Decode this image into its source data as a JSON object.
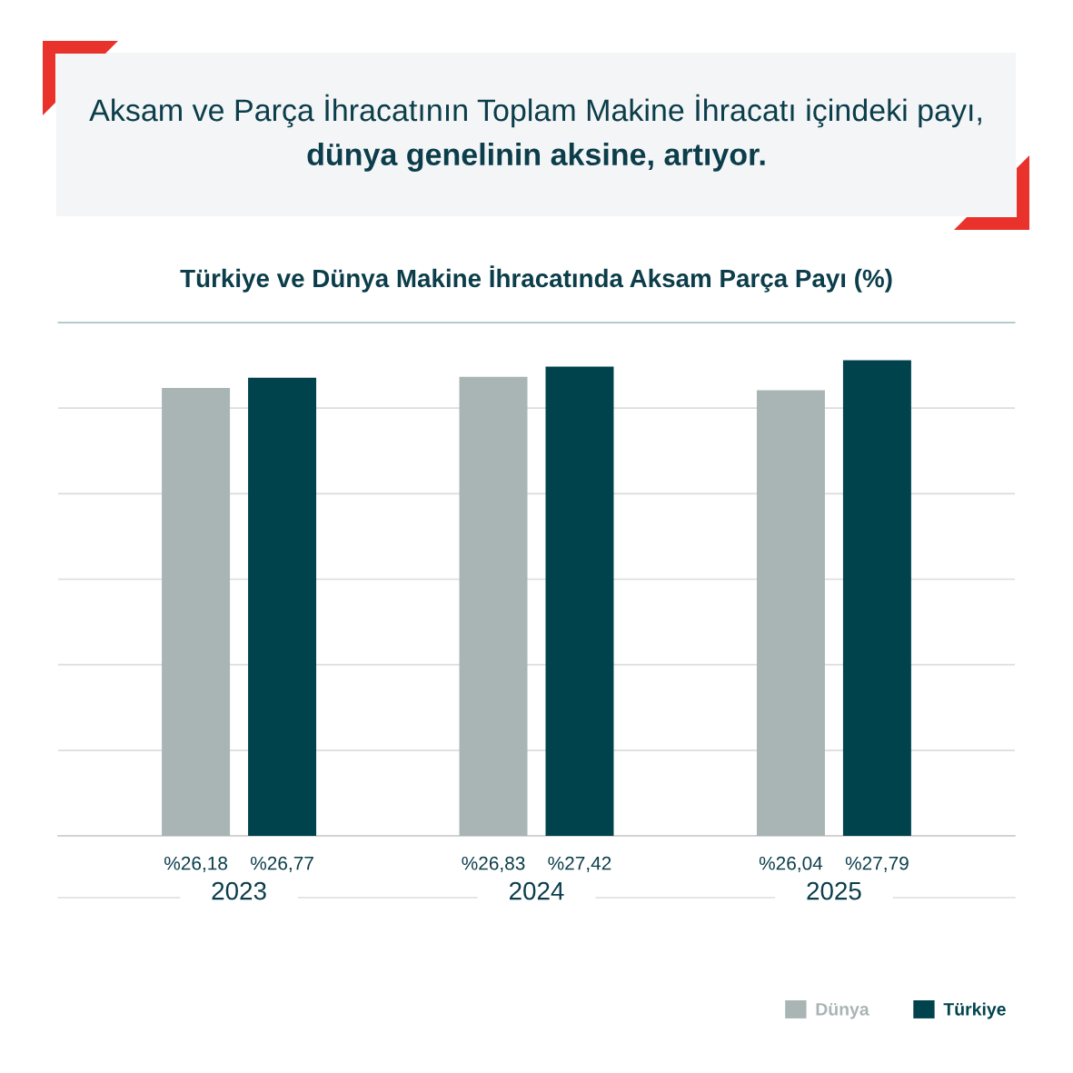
{
  "chart_data": {
    "type": "bar",
    "title": "Aksam ve Parça İhracatının Toplam Makine İhracatı içindeki payı,",
    "subtitle": "dünya genelinin aksine, artıyor.",
    "annotations": [
      "Türkiye ve Dünya Makine İhracatında Aksam Parça Payı (%)"
    ],
    "categories": [
      "2023",
      "2024",
      "2025"
    ],
    "series": [
      {
        "name": "Dünya",
        "color": "#a9b5b4",
        "values": [
          26.18,
          26.83,
          26.04
        ],
        "value_labels": [
          "%26,18",
          "%26,83",
          "%26,04"
        ]
      },
      {
        "name": "Türkiye",
        "color": "#01434d",
        "values": [
          26.77,
          27.42,
          27.79
        ],
        "value_labels": [
          "%26,77",
          "%27,42",
          "%27,79"
        ]
      }
    ],
    "ylim": [
      0,
      30
    ],
    "yticks": [
      {
        "value": 0,
        "label": null
      },
      {
        "value": 5,
        "label": null
      },
      {
        "value": 10,
        "label": null
      },
      {
        "value": 15,
        "label": null
      },
      {
        "value": 20,
        "label": null
      },
      {
        "value": 25,
        "label": null
      },
      {
        "value": 30,
        "label": null
      }
    ],
    "grid": "y",
    "legend": "bottom right",
    "tick_labels": "x"
  }
}
